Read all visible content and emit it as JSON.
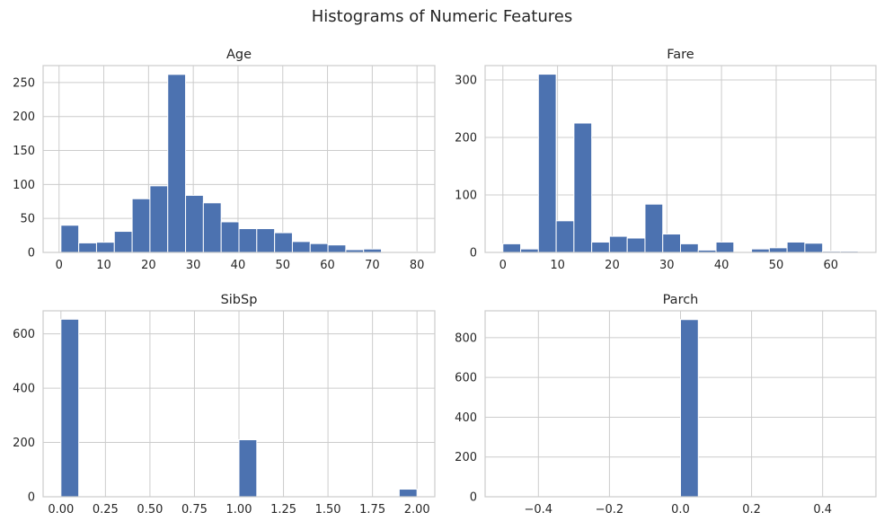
{
  "figure": {
    "title": "Histograms of Numeric Features"
  },
  "chart_data": [
    {
      "type": "bar",
      "title": "Age",
      "xlabel": "",
      "ylabel": "",
      "bin_edges": [
        0.42,
        4.399,
        8.378,
        12.357,
        16.336,
        20.315,
        24.294,
        28.273,
        32.252,
        36.231,
        40.21,
        44.189,
        48.168,
        52.147,
        56.126,
        60.105,
        64.084,
        68.063,
        72.042,
        76.021,
        80.0
      ],
      "values": [
        40,
        14,
        15,
        31,
        79,
        98,
        262,
        84,
        73,
        45,
        35,
        35,
        29,
        16,
        13,
        11,
        4,
        5,
        0,
        1
      ],
      "xlim": [
        -3.56,
        83.98
      ],
      "ylim": [
        0,
        275
      ],
      "xticks": [
        0,
        10,
        20,
        30,
        40,
        50,
        60,
        70,
        80
      ],
      "xtick_labels": [
        "0",
        "10",
        "20",
        "30",
        "40",
        "50",
        "60",
        "70",
        "80"
      ],
      "yticks": [
        0,
        50,
        100,
        150,
        200,
        250
      ],
      "ytick_labels": [
        "0",
        "50",
        "100",
        "150",
        "200",
        "250"
      ],
      "grid": true,
      "color": "#4c72b0"
    },
    {
      "type": "bar",
      "title": "Fare",
      "xlabel": "",
      "ylabel": "",
      "bin_edges": [
        0,
        3.25,
        6.5,
        9.75,
        13,
        16.25,
        19.5,
        22.75,
        26,
        29.25,
        32.5,
        35.75,
        39,
        42.25,
        45.5,
        48.75,
        52,
        55.25,
        58.5,
        61.75,
        65
      ],
      "values": [
        15,
        6,
        310,
        55,
        225,
        18,
        28,
        25,
        84,
        32,
        15,
        4,
        18,
        0,
        6,
        8,
        18,
        16,
        2,
        2
      ],
      "xlim": [
        -3.25,
        68.25
      ],
      "ylim": [
        0,
        325
      ],
      "xticks": [
        0,
        10,
        20,
        30,
        40,
        50,
        60
      ],
      "xtick_labels": [
        "0",
        "10",
        "20",
        "30",
        "40",
        "50",
        "60"
      ],
      "yticks": [
        0,
        100,
        200,
        300
      ],
      "ytick_labels": [
        "0",
        "100",
        "200",
        "300"
      ],
      "grid": true,
      "color": "#4c72b0"
    },
    {
      "type": "bar",
      "title": "SibSp",
      "xlabel": "",
      "ylabel": "",
      "bin_edges": [
        0,
        0.1,
        0.2,
        0.3,
        0.4,
        0.5,
        0.6,
        0.7,
        0.8,
        0.9,
        1.0,
        1.1,
        1.2,
        1.3,
        1.4,
        1.5,
        1.6,
        1.7,
        1.8,
        1.9,
        2.0
      ],
      "values": [
        654,
        0,
        0,
        0,
        0,
        0,
        0,
        0,
        0,
        0,
        210,
        0,
        0,
        0,
        0,
        0,
        0,
        0,
        0,
        28
      ],
      "xlim": [
        -0.1,
        2.1
      ],
      "ylim": [
        0,
        685
      ],
      "xticks": [
        0,
        0.25,
        0.5,
        0.75,
        1.0,
        1.25,
        1.5,
        1.75,
        2.0
      ],
      "xtick_labels": [
        "0.00",
        "0.25",
        "0.50",
        "0.75",
        "1.00",
        "1.25",
        "1.50",
        "1.75",
        "2.00"
      ],
      "yticks": [
        0,
        200,
        400,
        600
      ],
      "ytick_labels": [
        "0",
        "200",
        "400",
        "600"
      ],
      "grid": true,
      "color": "#4c72b0"
    },
    {
      "type": "bar",
      "title": "Parch",
      "xlabel": "",
      "ylabel": "",
      "bin_edges": [
        -0.5,
        -0.45,
        -0.4,
        -0.35,
        -0.3,
        -0.25,
        -0.2,
        -0.15,
        -0.1,
        -0.05,
        0,
        0.05,
        0.1,
        0.15,
        0.2,
        0.25,
        0.3,
        0.35,
        0.4,
        0.45,
        0.5
      ],
      "values": [
        0,
        0,
        0,
        0,
        0,
        0,
        0,
        0,
        0,
        0,
        891,
        0,
        0,
        0,
        0,
        0,
        0,
        0,
        0,
        0
      ],
      "xlim": [
        -0.55,
        0.55
      ],
      "ylim": [
        0,
        935
      ],
      "xticks": [
        -0.4,
        -0.2,
        0.0,
        0.2,
        0.4
      ],
      "xtick_labels": [
        "−0.4",
        "−0.2",
        "0.0",
        "0.2",
        "0.4"
      ],
      "yticks": [
        0,
        200,
        400,
        600,
        800
      ],
      "ytick_labels": [
        "0",
        "200",
        "400",
        "600",
        "800"
      ],
      "grid": true,
      "color": "#4c72b0"
    }
  ]
}
